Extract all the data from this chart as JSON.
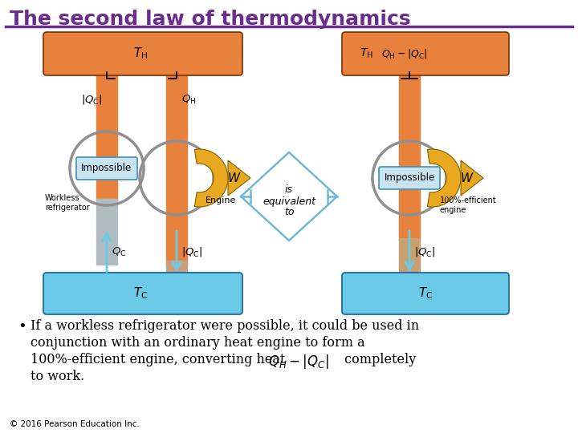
{
  "title": "The second law of thermodynamics",
  "title_color": "#6B2D8B",
  "title_fontsize": 18,
  "line_color": "#6B2D8B",
  "bg_color": "#ffffff",
  "orange_color": "#E8813C",
  "blue_color": "#6ACAE8",
  "arrow_color": "#E8A820",
  "gray_circle_color": "#909090",
  "impossible_box_color": "#C8E4F0",
  "bullet_text_line1": "If a workless refrigerator were possible, it could be used in",
  "bullet_text_line2": "conjunction with an ordinary heat engine to form a",
  "bullet_text_line3": "100%-efficient engine, converting heat ",
  "bullet_text_line4": " completely",
  "bullet_text_line5": "to work.",
  "copyright": "© 2016 Pearson Education Inc.",
  "equiv_text": "is\nequivalent\nto"
}
